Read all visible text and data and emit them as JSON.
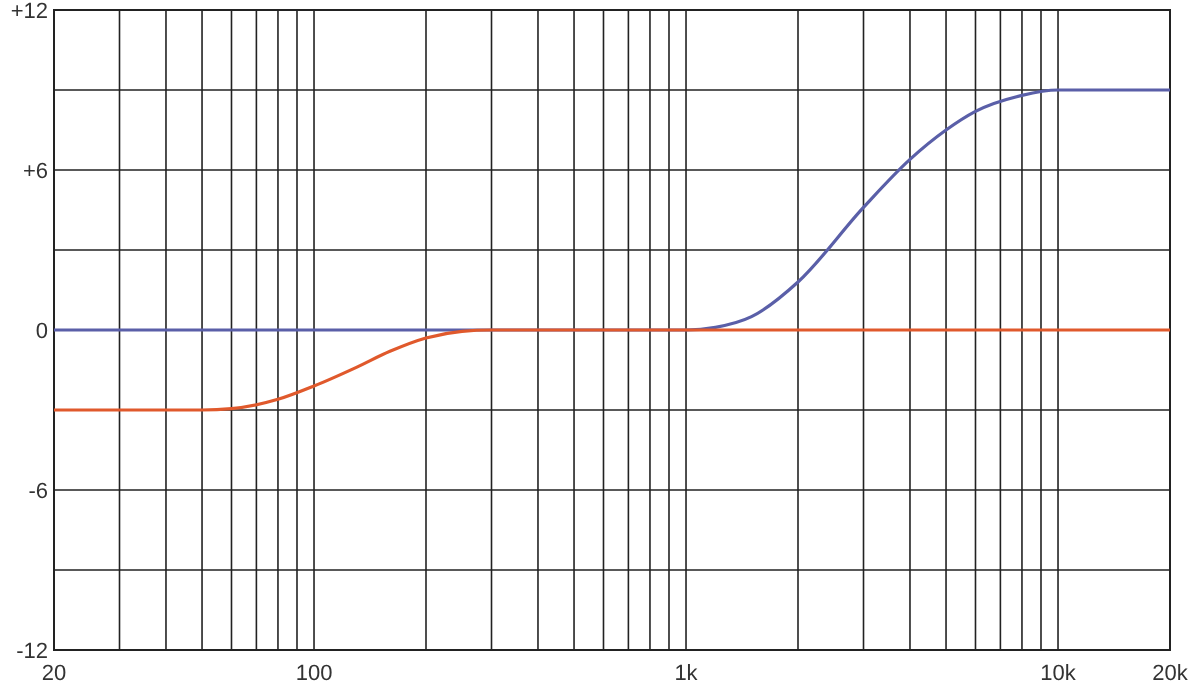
{
  "chart_data": {
    "type": "line",
    "log": "x",
    "grid": true,
    "marker": "none",
    "line_style": "solid",
    "xlim": [
      20,
      20000
    ],
    "xticks": [
      20,
      {
        "value": 30,
        "label": null
      },
      {
        "value": 40,
        "label": null
      },
      {
        "value": 50,
        "label": null
      },
      {
        "value": 60,
        "label": null
      },
      {
        "value": 70,
        "label": null
      },
      {
        "value": 80,
        "label": null
      },
      {
        "value": 90,
        "label": null
      },
      100,
      {
        "value": 200,
        "label": null
      },
      {
        "value": 300,
        "label": null
      },
      {
        "value": 400,
        "label": null
      },
      {
        "value": 500,
        "label": null
      },
      {
        "value": 600,
        "label": null
      },
      {
        "value": 700,
        "label": null
      },
      {
        "value": 800,
        "label": null
      },
      {
        "value": 900,
        "label": null
      },
      {
        "value": 1000,
        "label": "1k"
      },
      {
        "value": 2000,
        "label": null
      },
      {
        "value": 3000,
        "label": null
      },
      {
        "value": 4000,
        "label": null
      },
      {
        "value": 5000,
        "label": null
      },
      {
        "value": 6000,
        "label": null
      },
      {
        "value": 7000,
        "label": null
      },
      {
        "value": 8000,
        "label": null
      },
      {
        "value": 9000,
        "label": null
      },
      {
        "value": 10000,
        "label": "10k"
      },
      {
        "value": 20000,
        "label": "20k"
      }
    ],
    "ylim": [
      -12,
      12
    ],
    "yticks": [
      -12,
      {
        "value": -9,
        "label": null
      },
      -6,
      {
        "value": -3,
        "label": null
      },
      0,
      {
        "value": 3,
        "label": null
      },
      {
        "value": 6,
        "label": "+6"
      },
      {
        "value": 9,
        "label": null
      },
      {
        "value": 12,
        "label": "+12"
      }
    ],
    "series": [
      {
        "color": "#5a5fa8",
        "x": [
          20,
          1000,
          1200,
          1500,
          2000,
          3000,
          4000,
          5000,
          6000,
          8000,
          10000,
          20000
        ],
        "values": [
          0,
          0,
          0.1,
          0.5,
          1.8,
          4.6,
          6.4,
          7.5,
          8.2,
          8.8,
          9,
          9
        ]
      },
      {
        "color": "#e0592c",
        "x": [
          20,
          50,
          60,
          80,
          100,
          130,
          160,
          200,
          250,
          300,
          1000,
          20000
        ],
        "values": [
          -3,
          -3,
          -2.95,
          -2.6,
          -2.1,
          -1.4,
          -0.8,
          -0.3,
          -0.05,
          0,
          0,
          0
        ]
      }
    ]
  }
}
